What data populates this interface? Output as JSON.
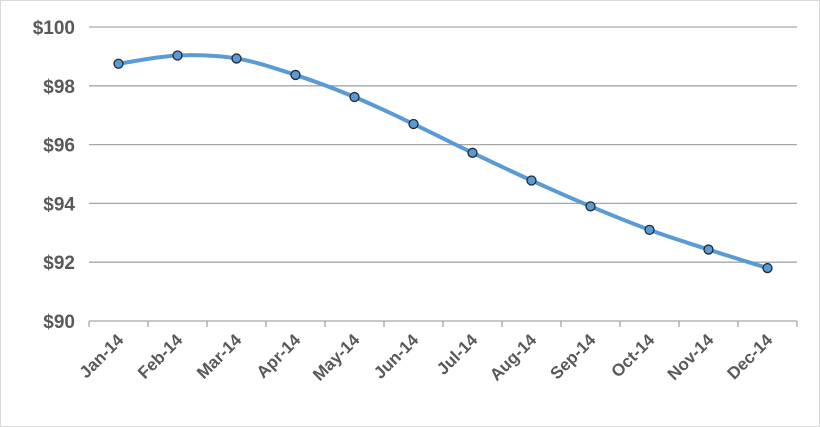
{
  "chart_data": {
    "type": "line",
    "title": "",
    "xlabel": "",
    "ylabel": "",
    "categories": [
      "Jan-14",
      "Feb-14",
      "Mar-14",
      "Apr-14",
      "May-14",
      "Jun-14",
      "Jul-14",
      "Aug-14",
      "Sep-14",
      "Oct-14",
      "Nov-14",
      "Dec-14"
    ],
    "series": [
      {
        "values": [
          98.75,
          99.03,
          98.93,
          98.37,
          97.62,
          96.7,
          95.72,
          94.78,
          93.9,
          93.1,
          92.43,
          91.8
        ]
      }
    ],
    "ylim": [
      90,
      100
    ],
    "yticks": [
      90,
      92,
      94,
      96,
      98,
      100
    ],
    "ytick_labels": [
      "$90",
      "$92",
      "$94",
      "$96",
      "$98",
      "$100"
    ],
    "grid": true,
    "line_smoothed": true,
    "legend": "none",
    "colors": {
      "line": "#5b9bd5",
      "marker_fill": "#5b9bd5",
      "marker_edge": "#1f2a36",
      "grid": "#a6a6a6",
      "text": "#595959"
    }
  }
}
